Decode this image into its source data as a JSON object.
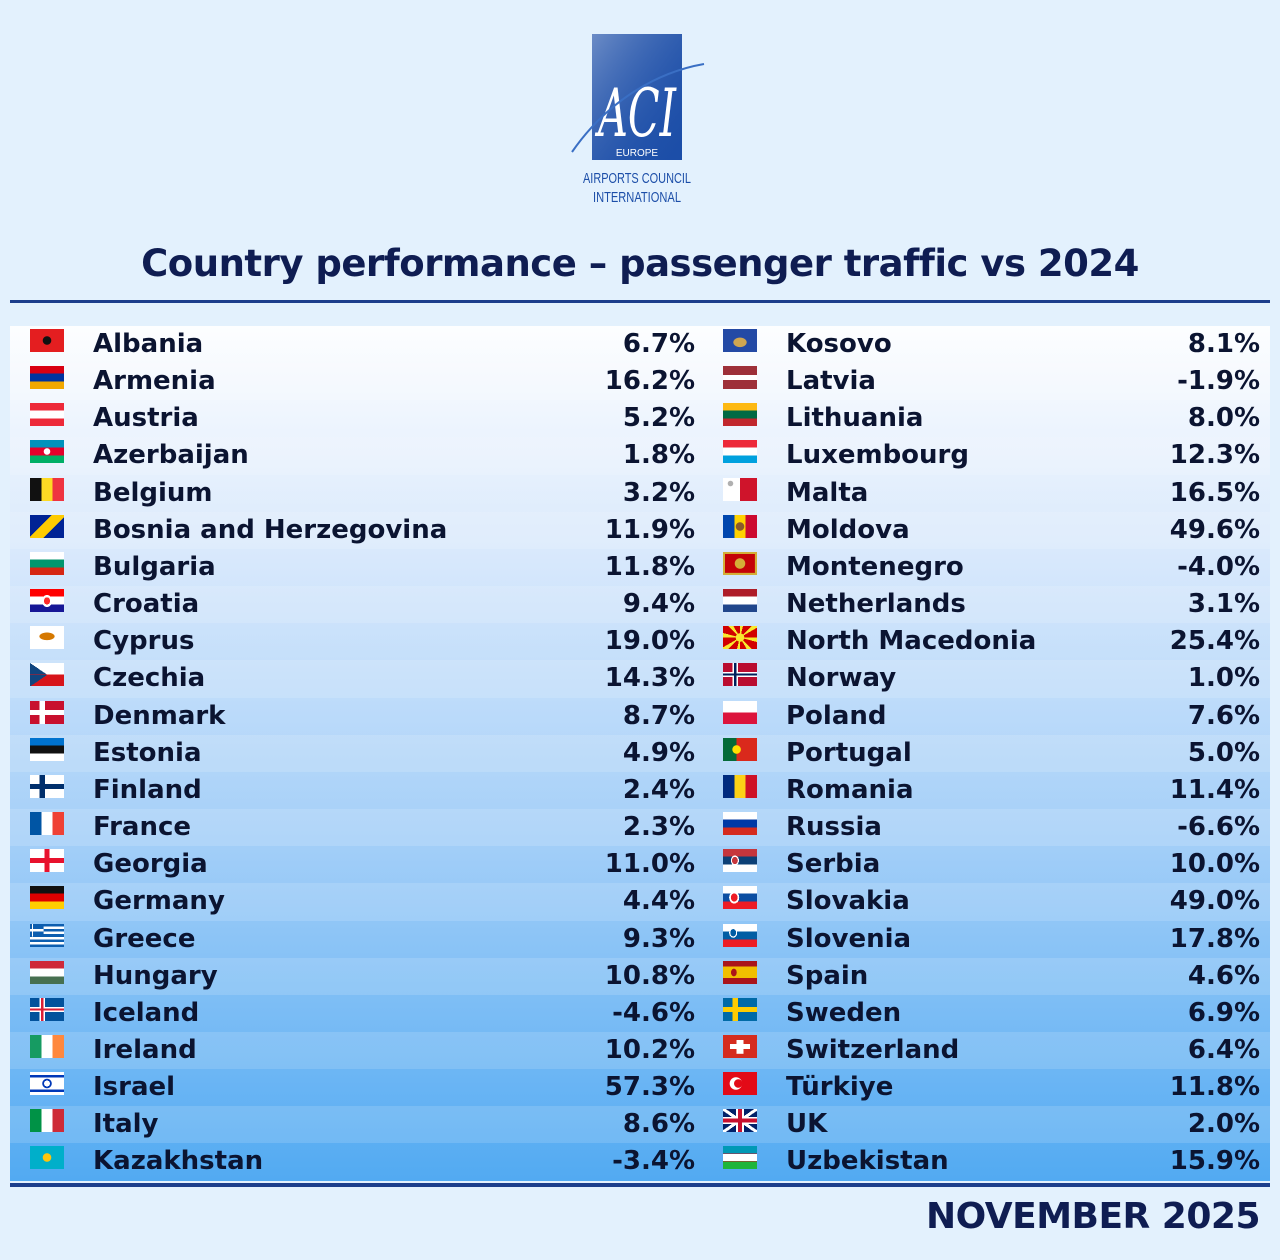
{
  "logo": {
    "mark": "ACI",
    "region": "EUROPE",
    "line1": "AIRPORTS COUNCIL",
    "line2": "INTERNATIONAL",
    "brand_color": "#1c4ea8"
  },
  "title": "Country performance – passenger traffic vs 2024",
  "footer": "NOVEMBER 2025",
  "chart_data": {
    "type": "table",
    "title": "Country performance – passenger traffic vs 2024",
    "period": "NOVEMBER 2025",
    "unit": "%",
    "columns": [
      [
        {
          "country": "Albania",
          "value": "6.7%",
          "flag": "albania"
        },
        {
          "country": "Armenia",
          "value": "16.2%",
          "flag": "armenia"
        },
        {
          "country": "Austria",
          "value": "5.2%",
          "flag": "austria"
        },
        {
          "country": "Azerbaijan",
          "value": "1.8%",
          "flag": "azerbaijan"
        },
        {
          "country": "Belgium",
          "value": "3.2%",
          "flag": "belgium"
        },
        {
          "country": "Bosnia and Herzegovina",
          "value": "11.9%",
          "flag": "bosnia"
        },
        {
          "country": "Bulgaria",
          "value": "11.8%",
          "flag": "bulgaria"
        },
        {
          "country": "Croatia",
          "value": "9.4%",
          "flag": "croatia"
        },
        {
          "country": "Cyprus",
          "value": "19.0%",
          "flag": "cyprus"
        },
        {
          "country": "Czechia",
          "value": "14.3%",
          "flag": "czechia"
        },
        {
          "country": "Denmark",
          "value": "8.7%",
          "flag": "denmark"
        },
        {
          "country": "Estonia",
          "value": "4.9%",
          "flag": "estonia"
        },
        {
          "country": "Finland",
          "value": "2.4%",
          "flag": "finland"
        },
        {
          "country": "France",
          "value": "2.3%",
          "flag": "france"
        },
        {
          "country": "Georgia",
          "value": "11.0%",
          "flag": "georgia"
        },
        {
          "country": "Germany",
          "value": "4.4%",
          "flag": "germany"
        },
        {
          "country": "Greece",
          "value": "9.3%",
          "flag": "greece"
        },
        {
          "country": "Hungary",
          "value": "10.8%",
          "flag": "hungary"
        },
        {
          "country": "Iceland",
          "value": "-4.6%",
          "flag": "iceland"
        },
        {
          "country": "Ireland",
          "value": "10.2%",
          "flag": "ireland"
        },
        {
          "country": "Israel",
          "value": "57.3%",
          "flag": "israel"
        },
        {
          "country": "Italy",
          "value": "8.6%",
          "flag": "italy"
        },
        {
          "country": "Kazakhstan",
          "value": "-3.4%",
          "flag": "kazakhstan"
        }
      ],
      [
        {
          "country": "Kosovo",
          "value": "8.1%",
          "flag": "kosovo"
        },
        {
          "country": "Latvia",
          "value": "-1.9%",
          "flag": "latvia"
        },
        {
          "country": "Lithuania",
          "value": "8.0%",
          "flag": "lithuania"
        },
        {
          "country": "Luxembourg",
          "value": "12.3%",
          "flag": "luxembourg"
        },
        {
          "country": "Malta",
          "value": "16.5%",
          "flag": "malta"
        },
        {
          "country": "Moldova",
          "value": "49.6%",
          "flag": "moldova"
        },
        {
          "country": "Montenegro",
          "value": "-4.0%",
          "flag": "montenegro"
        },
        {
          "country": "Netherlands",
          "value": "3.1%",
          "flag": "netherlands"
        },
        {
          "country": "North Macedonia",
          "value": "25.4%",
          "flag": "north-macedonia"
        },
        {
          "country": "Norway",
          "value": "1.0%",
          "flag": "norway"
        },
        {
          "country": "Poland",
          "value": "7.6%",
          "flag": "poland"
        },
        {
          "country": "Portugal",
          "value": "5.0%",
          "flag": "portugal"
        },
        {
          "country": "Romania",
          "value": "11.4%",
          "flag": "romania"
        },
        {
          "country": "Russia",
          "value": "-6.6%",
          "flag": "russia"
        },
        {
          "country": "Serbia",
          "value": "10.0%",
          "flag": "serbia"
        },
        {
          "country": "Slovakia",
          "value": "49.0%",
          "flag": "slovakia"
        },
        {
          "country": "Slovenia",
          "value": "17.8%",
          "flag": "slovenia"
        },
        {
          "country": "Spain",
          "value": "4.6%",
          "flag": "spain"
        },
        {
          "country": "Sweden",
          "value": "6.9%",
          "flag": "sweden"
        },
        {
          "country": "Switzerland",
          "value": "6.4%",
          "flag": "switzerland"
        },
        {
          "country": "Türkiye",
          "value": "11.8%",
          "flag": "turkiye"
        },
        {
          "country": "UK",
          "value": "2.0%",
          "flag": "uk"
        },
        {
          "country": "Uzbekistan",
          "value": "15.9%",
          "flag": "uzbekistan"
        }
      ]
    ]
  }
}
